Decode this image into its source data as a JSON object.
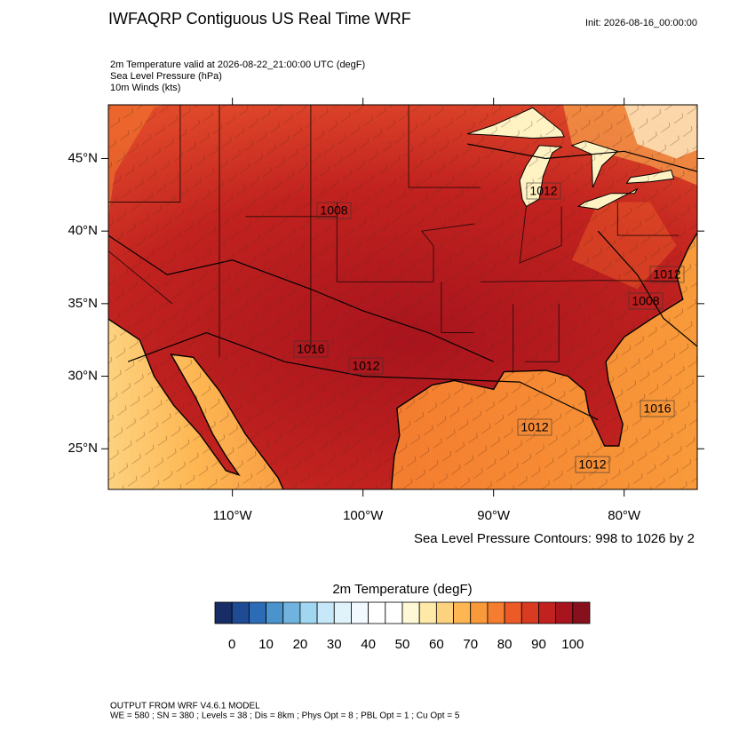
{
  "header": {
    "title": "IWFAQRP Contiguous US Real Time WRF",
    "init": "Init: 2026-08-16_00:00:00"
  },
  "fields": [
    "2m Temperature valid at 2026-08-22_21:00:00 UTC   (degF)",
    "Sea Level Pressure   (hPa)",
    "10m Winds   (kts)"
  ],
  "map": {
    "xlim": [
      -119.5,
      -74.4
    ],
    "ylim": [
      22.2,
      48.7
    ],
    "xticks": [
      {
        "value": -110,
        "label": "110°W"
      },
      {
        "value": -100,
        "label": "100°W"
      },
      {
        "value": -90,
        "label": "90°W"
      },
      {
        "value": -80,
        "label": "80°W"
      }
    ],
    "yticks": [
      {
        "value": 25,
        "label": "25°N"
      },
      {
        "value": 30,
        "label": "30°N"
      },
      {
        "value": 35,
        "label": "35°N"
      },
      {
        "value": 40,
        "label": "40°N"
      },
      {
        "value": 45,
        "label": "45°N"
      }
    ],
    "contour_labels": [
      "1012",
      "1008",
      "1012",
      "1008",
      "1016",
      "1012",
      "1016",
      "1012",
      "1012"
    ],
    "contour_note": "Sea Level Pressure Contours: 998 to 1026 by 2"
  },
  "colorbar": {
    "title": "2m Temperature  (degF)",
    "lim": [
      -5,
      105
    ],
    "colors": [
      "#182c66",
      "#1f4a94",
      "#2c6bb5",
      "#4a93cd",
      "#70b3de",
      "#a1d6f1",
      "#c6e8f8",
      "#e0f3fb",
      "#f2faff",
      "#ffffff",
      "#ffffff",
      "#fff8d6",
      "#fee9a8",
      "#fdd27f",
      "#fdb652",
      "#f89a3a",
      "#f47d2f",
      "#ec5b27",
      "#d93b22",
      "#c1221f",
      "#a8141d",
      "#86101b"
    ],
    "ticks": [
      0,
      10,
      20,
      30,
      40,
      50,
      60,
      70,
      80,
      90,
      100
    ]
  },
  "footer": [
    "OUTPUT FROM WRF V4.6.1 MODEL",
    "WE = 580 ; SN = 380 ; Levels = 38 ; Dis = 8km ; Phys Opt = 8 ; PBL Opt = 1 ; Cu Opt = 5"
  ]
}
